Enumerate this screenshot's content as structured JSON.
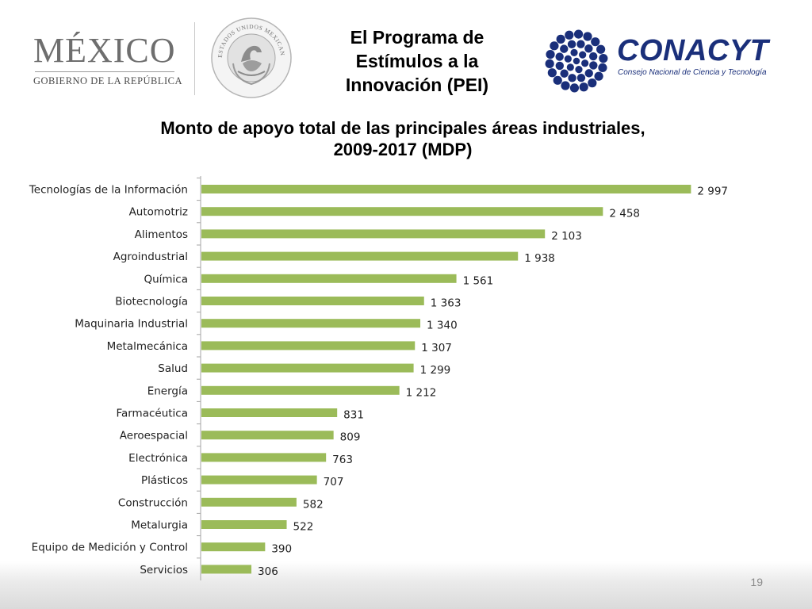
{
  "header": {
    "gov_logo": {
      "word": "MÉXICO",
      "subtitle": "GOBIERNO DE LA REPÚBLICA"
    },
    "seal_icon": "coat-of-arms-seal",
    "seal_text": "ESTADOS UNIDOS MEXICANOS",
    "program_title_lines": [
      "El Programa de",
      "Estímulos a la",
      "Innovación (PEI)"
    ],
    "conacyt_logo": {
      "word": "CONACYT",
      "subtitle": "Consejo Nacional de Ciencia y Tecnología",
      "color": "#1a2f7a"
    }
  },
  "chart_data": {
    "type": "bar",
    "orientation": "horizontal",
    "title_lines": [
      "Monto  de apoyo total de las principales áreas industriales,",
      "2009-2017 (MDP)"
    ],
    "categories": [
      "Tecnologías de la Información",
      "Automotriz",
      "Alimentos",
      "Agroindustrial",
      "Química",
      "Biotecnología",
      "Maquinaria Industrial",
      "Metalmecánica",
      "Salud",
      "Energía",
      "Farmacéutica",
      "Aeroespacial",
      "Electrónica",
      "Plásticos",
      "Construcción",
      "Metalurgia",
      "Equipo de Medición y Control",
      "Servicios"
    ],
    "values": [
      2997,
      2458,
      2103,
      1938,
      1561,
      1363,
      1340,
      1307,
      1299,
      1212,
      831,
      809,
      763,
      707,
      582,
      522,
      390,
      306
    ],
    "value_labels": [
      "2 997",
      "2 458",
      "2 103",
      "1 938",
      "1 561",
      "1 363",
      "1 340",
      "1 307",
      "1 299",
      "1 212",
      "831",
      "809",
      "763",
      "707",
      "582",
      "522",
      "390",
      "306"
    ],
    "xlim": [
      0,
      3000
    ],
    "bar_color": "#9bbb59",
    "grid": false,
    "legend": "none"
  },
  "footer": {
    "page_number": "19"
  }
}
